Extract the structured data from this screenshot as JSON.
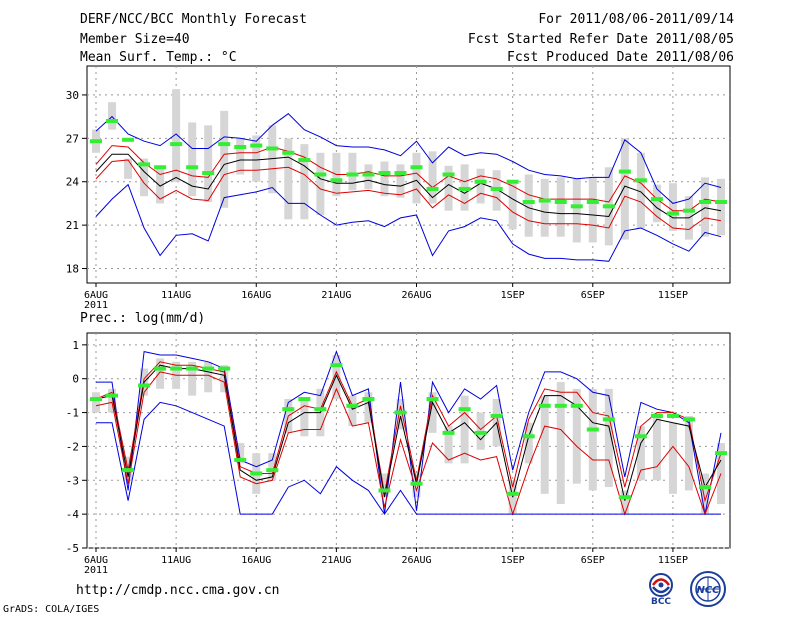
{
  "header": {
    "title": "DERF/NCC/BCC Monthly Forecast",
    "member_size": "Member Size=40",
    "variable": "Mean Surf. Temp.: °C",
    "period": "For 2011/08/06-2011/09/14",
    "fcst_started": "Fcst Started Refer Date 2011/08/05",
    "fcst_produced": "Fcst Produced Date 2011/08/06"
  },
  "footer": {
    "url": "http://cmdp.ncc.cma.gov.cn",
    "grads": "GrADS: COLA/IGES",
    "logo_bcc": "BCC",
    "logo_ncc": "NCC"
  },
  "colors": {
    "envelope": "#0000dd",
    "inner": "#dd0000",
    "mean": "#000000",
    "observed": "#33ee33",
    "spread_bar": "#d6d6d6",
    "grid": "#999999"
  },
  "chart_data": [
    {
      "type": "line",
      "title": "",
      "ylabel": "Mean Surf. Temp.: °C",
      "xlabel": "",
      "ylim": [
        17,
        32
      ],
      "yticks": [
        18,
        21,
        24,
        27,
        30
      ],
      "x": "days 0..39 (2011-08-06 .. 2011-09-14)",
      "xtick_labels": [
        {
          "day": 0,
          "label": "6AUG",
          "sub": "2011"
        },
        {
          "day": 5,
          "label": "11AUG"
        },
        {
          "day": 10,
          "label": "16AUG"
        },
        {
          "day": 15,
          "label": "21AUG"
        },
        {
          "day": 20,
          "label": "26AUG"
        },
        {
          "day": 26,
          "label": "1SEP"
        },
        {
          "day": 31,
          "label": "6SEP"
        },
        {
          "day": 36,
          "label": "11SEP"
        }
      ],
      "spread_bars": {
        "low": [
          26.0,
          27.6,
          24.2,
          23.0,
          22.5,
          24.0,
          23.0,
          22.6,
          22.2,
          24.5,
          24.0,
          23.2,
          21.4,
          21.4,
          21.7,
          23.0,
          23.4,
          23.5,
          23.0,
          22.9,
          22.5,
          22.5,
          22.0,
          22.0,
          22.5,
          22.0,
          20.7,
          20.2,
          20.2,
          20.2,
          19.8,
          19.8,
          19.6,
          20.0,
          20.8,
          21.2,
          20.6,
          20.0,
          20.2,
          20.3
        ],
        "high": [
          27.6,
          29.5,
          25.6,
          25.6,
          25.0,
          30.4,
          28.1,
          27.9,
          28.9,
          27.0,
          27.2,
          27.9,
          27.0,
          26.6,
          26.0,
          26.0,
          26.0,
          25.2,
          25.4,
          25.2,
          26.0,
          26.1,
          25.1,
          25.2,
          24.9,
          24.8,
          24.0,
          24.5,
          24.2,
          24.3,
          24.2,
          24.3,
          25.0,
          27.0,
          26.0,
          23.8,
          23.9,
          23.0,
          24.3,
          24.2
        ]
      },
      "series": [
        {
          "name": "ensemble-max",
          "style": "envelope",
          "values": [
            27.5,
            28.5,
            27.3,
            26.8,
            26.5,
            27.3,
            26.3,
            26.3,
            27.1,
            27.0,
            26.8,
            27.9,
            28.7,
            27.6,
            27.1,
            26.5,
            26.4,
            26.4,
            26.2,
            25.8,
            26.8,
            25.3,
            26.4,
            25.8,
            26.0,
            25.9,
            25.4,
            24.8,
            24.5,
            24.4,
            24.2,
            24.3,
            24.3,
            26.9,
            26.0,
            23.5,
            22.5,
            22.8,
            23.9,
            23.6
          ]
        },
        {
          "name": "ensemble-high",
          "style": "inner",
          "values": [
            25.2,
            26.5,
            26.4,
            25.3,
            24.5,
            24.8,
            24.4,
            24.3,
            25.9,
            26.0,
            26.0,
            26.4,
            26.1,
            25.7,
            25.0,
            24.5,
            24.5,
            24.7,
            24.4,
            24.4,
            24.6,
            23.6,
            24.4,
            24.0,
            24.4,
            24.2,
            23.7,
            23.1,
            22.8,
            22.8,
            22.8,
            22.8,
            22.6,
            24.4,
            23.9,
            22.8,
            22.0,
            22.0,
            22.8,
            22.6
          ]
        },
        {
          "name": "ensemble-mean",
          "style": "mean",
          "values": [
            24.7,
            25.9,
            25.9,
            24.7,
            23.7,
            24.3,
            23.7,
            23.5,
            25.2,
            25.5,
            25.5,
            25.6,
            25.7,
            25.1,
            24.2,
            23.9,
            23.9,
            24.1,
            23.8,
            23.7,
            24.1,
            22.9,
            23.8,
            23.2,
            23.9,
            23.5,
            22.8,
            22.2,
            21.9,
            21.8,
            21.8,
            21.7,
            21.6,
            23.7,
            23.3,
            22.2,
            21.5,
            21.5,
            22.2,
            22.0
          ]
        },
        {
          "name": "ensemble-low",
          "style": "inner",
          "values": [
            24.2,
            25.4,
            25.5,
            23.9,
            22.8,
            23.4,
            22.8,
            22.7,
            24.5,
            24.8,
            24.8,
            24.9,
            25.0,
            24.5,
            23.5,
            23.2,
            23.3,
            23.4,
            23.2,
            23.1,
            23.5,
            22.2,
            23.1,
            22.5,
            23.2,
            22.9,
            21.9,
            21.3,
            21.1,
            21.1,
            21.1,
            21.0,
            20.8,
            23.0,
            22.6,
            21.6,
            20.8,
            20.7,
            21.5,
            21.3
          ]
        },
        {
          "name": "ensemble-min",
          "style": "envelope",
          "values": [
            21.6,
            22.8,
            23.8,
            20.8,
            18.9,
            20.3,
            20.4,
            19.9,
            22.9,
            23.1,
            23.3,
            23.6,
            22.5,
            22.5,
            21.7,
            21.0,
            21.2,
            21.3,
            20.9,
            21.5,
            21.7,
            18.9,
            20.6,
            20.9,
            21.5,
            21.3,
            19.7,
            19.0,
            18.7,
            18.7,
            18.6,
            18.6,
            18.5,
            20.6,
            20.8,
            20.3,
            19.7,
            19.2,
            20.5,
            20.2
          ]
        }
      ],
      "observed": [
        26.8,
        28.2,
        26.9,
        25.2,
        25.0,
        26.6,
        25.0,
        24.6,
        26.6,
        26.4,
        26.5,
        26.3,
        26.0,
        25.5,
        24.5,
        24.1,
        24.5,
        24.5,
        24.6,
        24.6,
        25.0,
        23.5,
        24.5,
        23.5,
        24.0,
        23.5,
        24.0,
        22.6,
        22.7,
        22.6,
        22.3,
        22.6,
        22.3,
        24.7,
        24.1,
        22.8,
        21.8,
        22.0,
        22.6,
        22.6
      ]
    },
    {
      "type": "line",
      "title": "Prec.: log(mm/d)",
      "ylabel": "Prec.: log(mm/d)",
      "xlabel": "",
      "ylim": [
        -5,
        1.2
      ],
      "yticks": [
        1,
        0,
        -1,
        -2,
        -3,
        -4,
        -5
      ],
      "x": "days 0..39 (2011-08-06 .. 2011-09-14)",
      "xtick_labels": [
        {
          "day": 0,
          "label": "6AUG",
          "sub": "2011"
        },
        {
          "day": 5,
          "label": "11AUG"
        },
        {
          "day": 10,
          "label": "16AUG"
        },
        {
          "day": 15,
          "label": "21AUG"
        },
        {
          "day": 20,
          "label": "26AUG"
        },
        {
          "day": 26,
          "label": "1SEP"
        },
        {
          "day": 31,
          "label": "6SEP"
        },
        {
          "day": 36,
          "label": "11SEP"
        }
      ],
      "spread_bars": {
        "low": [
          -1.0,
          -1.0,
          -3.0,
          -0.5,
          -0.3,
          -0.3,
          -0.5,
          -0.4,
          -0.4,
          -2.5,
          -3.4,
          -3.0,
          -1.6,
          -1.7,
          -1.7,
          -0.6,
          -1.4,
          -1.3,
          -3.5,
          -1.5,
          -3.5,
          -1.6,
          -2.5,
          -2.5,
          -2.1,
          -2.0,
          -4.0,
          -2.5,
          -3.4,
          -3.7,
          -3.1,
          -3.3,
          -3.2,
          -4.0,
          -3.0,
          -3.0,
          -3.4,
          -3.3,
          -4.0,
          -3.7
        ],
        "high": [
          -0.4,
          -0.3,
          -2.3,
          0.3,
          0.6,
          0.5,
          0.5,
          0.5,
          0.4,
          -1.9,
          -2.2,
          -2.2,
          -0.6,
          -0.6,
          -0.3,
          0.7,
          -0.5,
          -0.4,
          -2.8,
          -0.6,
          -2.8,
          -0.4,
          -1.4,
          -0.5,
          -1.0,
          -0.6,
          -3.0,
          -1.3,
          -0.5,
          -0.1,
          -0.3,
          -0.3,
          -0.3,
          -3.3,
          -1.4,
          -1.0,
          -1.3,
          -1.1,
          -2.8,
          -1.9
        ]
      },
      "series": [
        {
          "name": "ensemble-max",
          "style": "envelope",
          "values": [
            -0.1,
            -0.1,
            -3.3,
            0.8,
            0.7,
            0.7,
            0.6,
            0.5,
            0.3,
            -2.4,
            -2.6,
            -2.4,
            -0.7,
            -0.4,
            -0.5,
            0.8,
            -0.5,
            -0.3,
            -4.0,
            -0.1,
            -3.9,
            -0.1,
            -1.0,
            -0.3,
            -0.6,
            -0.2,
            -2.7,
            -1.0,
            0.2,
            0.2,
            0.0,
            -0.4,
            -0.5,
            -2.9,
            -0.7,
            -0.9,
            -1.0,
            -1.3,
            -4.0,
            -1.6
          ]
        },
        {
          "name": "ensemble-high",
          "style": "inner",
          "values": [
            -0.6,
            -0.4,
            -2.7,
            0.0,
            0.5,
            0.4,
            0.4,
            0.3,
            0.2,
            -2.6,
            -2.8,
            -2.8,
            -1.1,
            -0.8,
            -0.9,
            0.2,
            -0.8,
            -0.6,
            -3.4,
            -0.8,
            -3.0,
            -0.5,
            -1.4,
            -1.0,
            -1.5,
            -1.1,
            -3.2,
            -1.2,
            -0.3,
            -0.4,
            -0.4,
            -1.0,
            -1.1,
            -3.2,
            -1.4,
            -1.0,
            -1.0,
            -1.2,
            -3.6,
            -2.2
          ]
        },
        {
          "name": "ensemble-mean",
          "style": "mean",
          "values": [
            -0.6,
            -0.5,
            -2.9,
            -0.1,
            0.4,
            0.3,
            0.3,
            0.2,
            0.1,
            -2.7,
            -3.0,
            -2.9,
            -1.3,
            -1.0,
            -1.0,
            0.1,
            -0.9,
            -0.7,
            -3.5,
            -1.1,
            -3.1,
            -0.7,
            -1.6,
            -1.3,
            -1.8,
            -1.3,
            -3.5,
            -1.7,
            -0.5,
            -0.5,
            -0.8,
            -1.3,
            -1.4,
            -3.6,
            -1.9,
            -1.2,
            -1.3,
            -1.4,
            -3.2,
            -2.4
          ]
        },
        {
          "name": "ensemble-low",
          "style": "inner",
          "values": [
            -0.8,
            -0.7,
            -3.1,
            -0.4,
            0.2,
            0.1,
            0.1,
            0.1,
            -0.1,
            -2.9,
            -3.1,
            -3.0,
            -1.6,
            -1.5,
            -1.5,
            -0.3,
            -1.4,
            -1.3,
            -3.8,
            -1.8,
            -3.3,
            -1.9,
            -2.4,
            -2.2,
            -2.4,
            -2.3,
            -4.0,
            -2.6,
            -1.4,
            -1.5,
            -2.0,
            -2.4,
            -2.4,
            -4.0,
            -2.7,
            -2.6,
            -2.0,
            -2.6,
            -4.0,
            -2.8
          ]
        },
        {
          "name": "ensemble-min",
          "style": "envelope",
          "values": [
            -1.3,
            -1.3,
            -3.6,
            -1.2,
            -0.7,
            -0.8,
            -1.0,
            -1.2,
            -1.4,
            -4.0,
            -4.0,
            -4.0,
            -3.2,
            -3.0,
            -3.4,
            -2.6,
            -3.0,
            -3.3,
            -4.0,
            -3.3,
            -4.0,
            -4.0,
            -4.0,
            -4.0,
            -4.0,
            -4.0,
            -4.0,
            -4.0,
            -4.0,
            -4.0,
            -4.0,
            -4.0,
            -4.0,
            -4.0,
            -4.0,
            -4.0,
            -4.0,
            -4.0,
            -4.0,
            -4.0
          ]
        }
      ],
      "observed": [
        -0.6,
        -0.5,
        -2.7,
        -0.2,
        0.3,
        0.3,
        0.3,
        0.3,
        0.3,
        -2.4,
        -2.8,
        -2.7,
        -0.9,
        -0.6,
        -0.9,
        0.4,
        -0.8,
        -0.6,
        -3.3,
        -1.0,
        -3.1,
        -0.6,
        -1.6,
        -0.9,
        -1.6,
        -1.1,
        -3.4,
        -1.7,
        -0.8,
        -0.8,
        -0.8,
        -1.5,
        -1.2,
        -3.5,
        -1.7,
        -1.1,
        -1.1,
        -1.2,
        -3.2,
        -2.2
      ]
    }
  ]
}
